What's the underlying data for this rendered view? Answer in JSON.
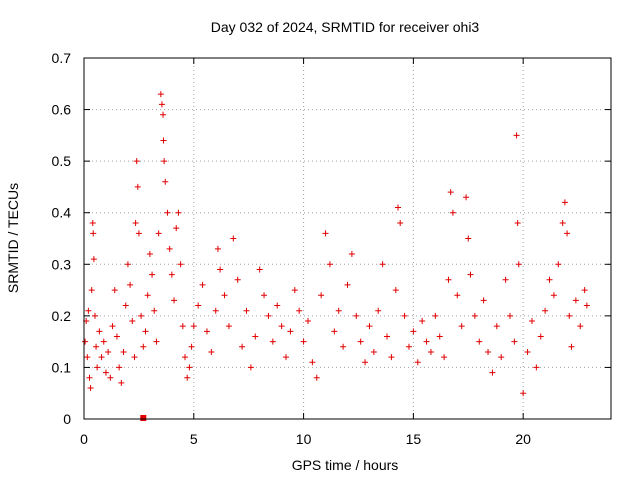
{
  "chart_data": {
    "type": "scatter",
    "title": "Day 032 of 2024, SRMTID for receiver ohi3",
    "xlabel": "GPS time / hours",
    "ylabel": "SRMTID / TECUs",
    "xlim": [
      0,
      24
    ],
    "ylim": [
      0,
      0.7
    ],
    "xticks": [
      0,
      5,
      10,
      15,
      20
    ],
    "xtick_labels": [
      "0",
      "5",
      "10",
      "15",
      "20"
    ],
    "yticks": [
      0,
      0.1,
      0.2,
      0.3,
      0.4,
      0.5,
      0.6,
      0.7
    ],
    "ytick_labels": [
      "0",
      "0.1",
      "0.2",
      "0.3",
      "0.4",
      "0.5",
      "0.6",
      "0.7"
    ],
    "grid": true,
    "marker": "plus",
    "color": "#e00000",
    "series": [
      {
        "name": "SRMTID",
        "note": "dense point cloud; values 0.04-0.63 TECU over 0-22.9 h; representative samples listed",
        "points": [
          [
            0.05,
            0.15
          ],
          [
            0.1,
            0.19
          ],
          [
            0.15,
            0.12
          ],
          [
            0.2,
            0.21
          ],
          [
            0.25,
            0.08
          ],
          [
            0.3,
            0.06
          ],
          [
            0.35,
            0.25
          ],
          [
            0.4,
            0.38
          ],
          [
            0.42,
            0.36
          ],
          [
            0.45,
            0.31
          ],
          [
            0.5,
            0.2
          ],
          [
            0.55,
            0.14
          ],
          [
            0.6,
            0.1
          ],
          [
            0.7,
            0.17
          ],
          [
            0.8,
            0.12
          ],
          [
            0.9,
            0.15
          ],
          [
            1.0,
            0.09
          ],
          [
            1.1,
            0.13
          ],
          [
            1.2,
            0.08
          ],
          [
            1.3,
            0.18
          ],
          [
            1.4,
            0.25
          ],
          [
            1.5,
            0.16
          ],
          [
            1.6,
            0.1
          ],
          [
            1.7,
            0.07
          ],
          [
            1.8,
            0.13
          ],
          [
            1.9,
            0.22
          ],
          [
            2.0,
            0.3
          ],
          [
            2.1,
            0.26
          ],
          [
            2.2,
            0.19
          ],
          [
            2.3,
            0.12
          ],
          [
            2.35,
            0.38
          ],
          [
            2.4,
            0.5
          ],
          [
            2.45,
            0.45
          ],
          [
            2.5,
            0.36
          ],
          [
            2.6,
            0.2
          ],
          [
            2.7,
            0.14
          ],
          [
            2.8,
            0.17
          ],
          [
            2.9,
            0.24
          ],
          [
            3.0,
            0.32
          ],
          [
            3.1,
            0.28
          ],
          [
            3.2,
            0.21
          ],
          [
            3.3,
            0.15
          ],
          [
            3.4,
            0.36
          ],
          [
            3.5,
            0.63
          ],
          [
            3.55,
            0.61
          ],
          [
            3.6,
            0.59
          ],
          [
            3.62,
            0.54
          ],
          [
            3.65,
            0.5
          ],
          [
            3.7,
            0.46
          ],
          [
            3.8,
            0.4
          ],
          [
            3.9,
            0.33
          ],
          [
            4.0,
            0.28
          ],
          [
            4.1,
            0.23
          ],
          [
            4.2,
            0.37
          ],
          [
            4.3,
            0.4
          ],
          [
            4.4,
            0.3
          ],
          [
            4.5,
            0.18
          ],
          [
            4.6,
            0.12
          ],
          [
            4.7,
            0.08
          ],
          [
            4.8,
            0.1
          ],
          [
            4.9,
            0.14
          ],
          [
            5.0,
            0.18
          ],
          [
            5.2,
            0.22
          ],
          [
            5.4,
            0.26
          ],
          [
            5.6,
            0.17
          ],
          [
            5.8,
            0.13
          ],
          [
            6.0,
            0.21
          ],
          [
            6.1,
            0.33
          ],
          [
            6.2,
            0.29
          ],
          [
            6.4,
            0.24
          ],
          [
            6.6,
            0.18
          ],
          [
            6.8,
            0.35
          ],
          [
            7.0,
            0.27
          ],
          [
            7.2,
            0.14
          ],
          [
            7.4,
            0.21
          ],
          [
            7.6,
            0.1
          ],
          [
            7.8,
            0.16
          ],
          [
            8.0,
            0.29
          ],
          [
            8.2,
            0.24
          ],
          [
            8.4,
            0.2
          ],
          [
            8.6,
            0.15
          ],
          [
            8.8,
            0.22
          ],
          [
            9.0,
            0.18
          ],
          [
            9.2,
            0.12
          ],
          [
            9.4,
            0.17
          ],
          [
            9.6,
            0.25
          ],
          [
            9.8,
            0.21
          ],
          [
            10.0,
            0.15
          ],
          [
            10.2,
            0.19
          ],
          [
            10.4,
            0.11
          ],
          [
            10.6,
            0.08
          ],
          [
            10.8,
            0.24
          ],
          [
            11.0,
            0.36
          ],
          [
            11.2,
            0.3
          ],
          [
            11.4,
            0.17
          ],
          [
            11.6,
            0.21
          ],
          [
            11.8,
            0.14
          ],
          [
            12.0,
            0.26
          ],
          [
            12.2,
            0.32
          ],
          [
            12.4,
            0.2
          ],
          [
            12.6,
            0.15
          ],
          [
            12.8,
            0.11
          ],
          [
            13.0,
            0.18
          ],
          [
            13.2,
            0.13
          ],
          [
            13.4,
            0.21
          ],
          [
            13.6,
            0.3
          ],
          [
            13.8,
            0.16
          ],
          [
            14.0,
            0.12
          ],
          [
            14.2,
            0.25
          ],
          [
            14.3,
            0.41
          ],
          [
            14.4,
            0.38
          ],
          [
            14.6,
            0.2
          ],
          [
            14.8,
            0.14
          ],
          [
            15.0,
            0.17
          ],
          [
            15.2,
            0.11
          ],
          [
            15.4,
            0.19
          ],
          [
            15.6,
            0.15
          ],
          [
            15.8,
            0.13
          ],
          [
            16.0,
            0.2
          ],
          [
            16.2,
            0.16
          ],
          [
            16.4,
            0.12
          ],
          [
            16.6,
            0.27
          ],
          [
            16.7,
            0.44
          ],
          [
            16.8,
            0.4
          ],
          [
            17.0,
            0.24
          ],
          [
            17.2,
            0.18
          ],
          [
            17.4,
            0.43
          ],
          [
            17.5,
            0.35
          ],
          [
            17.6,
            0.28
          ],
          [
            17.8,
            0.2
          ],
          [
            18.0,
            0.15
          ],
          [
            18.2,
            0.23
          ],
          [
            18.4,
            0.13
          ],
          [
            18.6,
            0.09
          ],
          [
            18.8,
            0.18
          ],
          [
            19.0,
            0.12
          ],
          [
            19.2,
            0.27
          ],
          [
            19.4,
            0.2
          ],
          [
            19.6,
            0.15
          ],
          [
            19.7,
            0.55
          ],
          [
            19.75,
            0.38
          ],
          [
            19.8,
            0.3
          ],
          [
            20.0,
            0.05
          ],
          [
            20.2,
            0.13
          ],
          [
            20.4,
            0.19
          ],
          [
            20.6,
            0.1
          ],
          [
            20.8,
            0.16
          ],
          [
            21.0,
            0.21
          ],
          [
            21.2,
            0.27
          ],
          [
            21.4,
            0.24
          ],
          [
            21.6,
            0.3
          ],
          [
            21.8,
            0.38
          ],
          [
            21.9,
            0.42
          ],
          [
            22.0,
            0.36
          ],
          [
            22.1,
            0.2
          ],
          [
            22.2,
            0.14
          ],
          [
            22.4,
            0.23
          ],
          [
            22.6,
            0.18
          ],
          [
            22.8,
            0.25
          ],
          [
            22.9,
            0.22
          ]
        ]
      }
    ]
  },
  "legend_key": {
    "x": 2.7,
    "y": 0.0
  }
}
